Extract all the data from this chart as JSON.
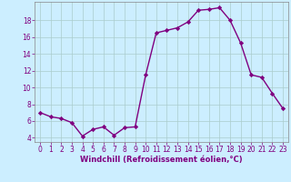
{
  "x": [
    0,
    1,
    2,
    3,
    4,
    5,
    6,
    7,
    8,
    9,
    10,
    11,
    12,
    13,
    14,
    15,
    16,
    17,
    18,
    19,
    20,
    21,
    22,
    23
  ],
  "y": [
    7.0,
    6.5,
    6.3,
    5.8,
    4.2,
    5.0,
    5.3,
    4.3,
    5.2,
    5.3,
    11.5,
    16.5,
    16.8,
    17.1,
    17.8,
    19.2,
    19.3,
    19.5,
    18.0,
    15.3,
    11.5,
    11.2,
    9.3,
    7.5
  ],
  "xlabel": "Windchill (Refroidissement éolien,°C)",
  "xlim": [
    -0.5,
    23.5
  ],
  "ylim": [
    3.5,
    20.2
  ],
  "yticks": [
    4,
    6,
    8,
    10,
    12,
    14,
    16,
    18
  ],
  "xticks": [
    0,
    1,
    2,
    3,
    4,
    5,
    6,
    7,
    8,
    9,
    10,
    11,
    12,
    13,
    14,
    15,
    16,
    17,
    18,
    19,
    20,
    21,
    22,
    23
  ],
  "line_color": "#800080",
  "marker": "D",
  "marker_size": 2.2,
  "bg_color": "#cceeff",
  "grid_color": "#aacccc",
  "xlabel_color": "#800080",
  "tick_color": "#800080",
  "line_width": 1.0,
  "tick_fontsize": 5.5,
  "xlabel_fontsize": 6.0
}
